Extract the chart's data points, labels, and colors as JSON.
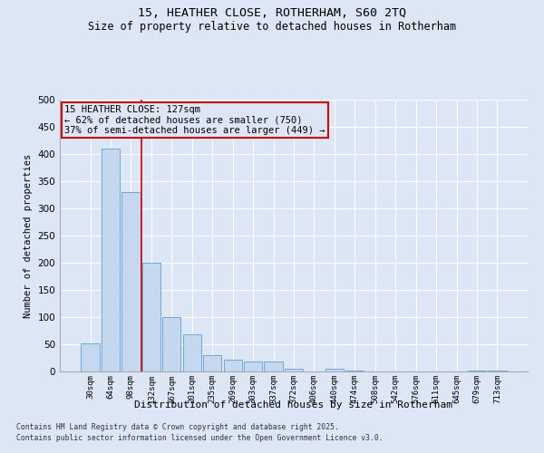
{
  "title1": "15, HEATHER CLOSE, ROTHERHAM, S60 2TQ",
  "title2": "Size of property relative to detached houses in Rotherham",
  "xlabel": "Distribution of detached houses by size in Rotherham",
  "ylabel": "Number of detached properties",
  "bar_labels": [
    "30sqm",
    "64sqm",
    "98sqm",
    "132sqm",
    "167sqm",
    "201sqm",
    "235sqm",
    "269sqm",
    "303sqm",
    "337sqm",
    "372sqm",
    "406sqm",
    "440sqm",
    "474sqm",
    "508sqm",
    "542sqm",
    "576sqm",
    "611sqm",
    "645sqm",
    "679sqm",
    "713sqm"
  ],
  "bar_values": [
    52,
    410,
    330,
    200,
    100,
    68,
    30,
    22,
    18,
    18,
    5,
    0,
    5,
    2,
    0,
    0,
    0,
    0,
    0,
    2,
    2
  ],
  "bar_color": "#c5d8ef",
  "bar_edge_color": "#6fa8d4",
  "vline_color": "#cc0000",
  "annotation_title": "15 HEATHER CLOSE: 127sqm",
  "annotation_line1": "← 62% of detached houses are smaller (750)",
  "annotation_line2": "37% of semi-detached houses are larger (449) →",
  "annotation_box_color": "#cc0000",
  "ylim": [
    0,
    500
  ],
  "yticks": [
    0,
    50,
    100,
    150,
    200,
    250,
    300,
    350,
    400,
    450,
    500
  ],
  "footer1": "Contains HM Land Registry data © Crown copyright and database right 2025.",
  "footer2": "Contains public sector information licensed under the Open Government Licence v3.0.",
  "bg_color": "#dce6f5",
  "grid_color": "#ffffff"
}
